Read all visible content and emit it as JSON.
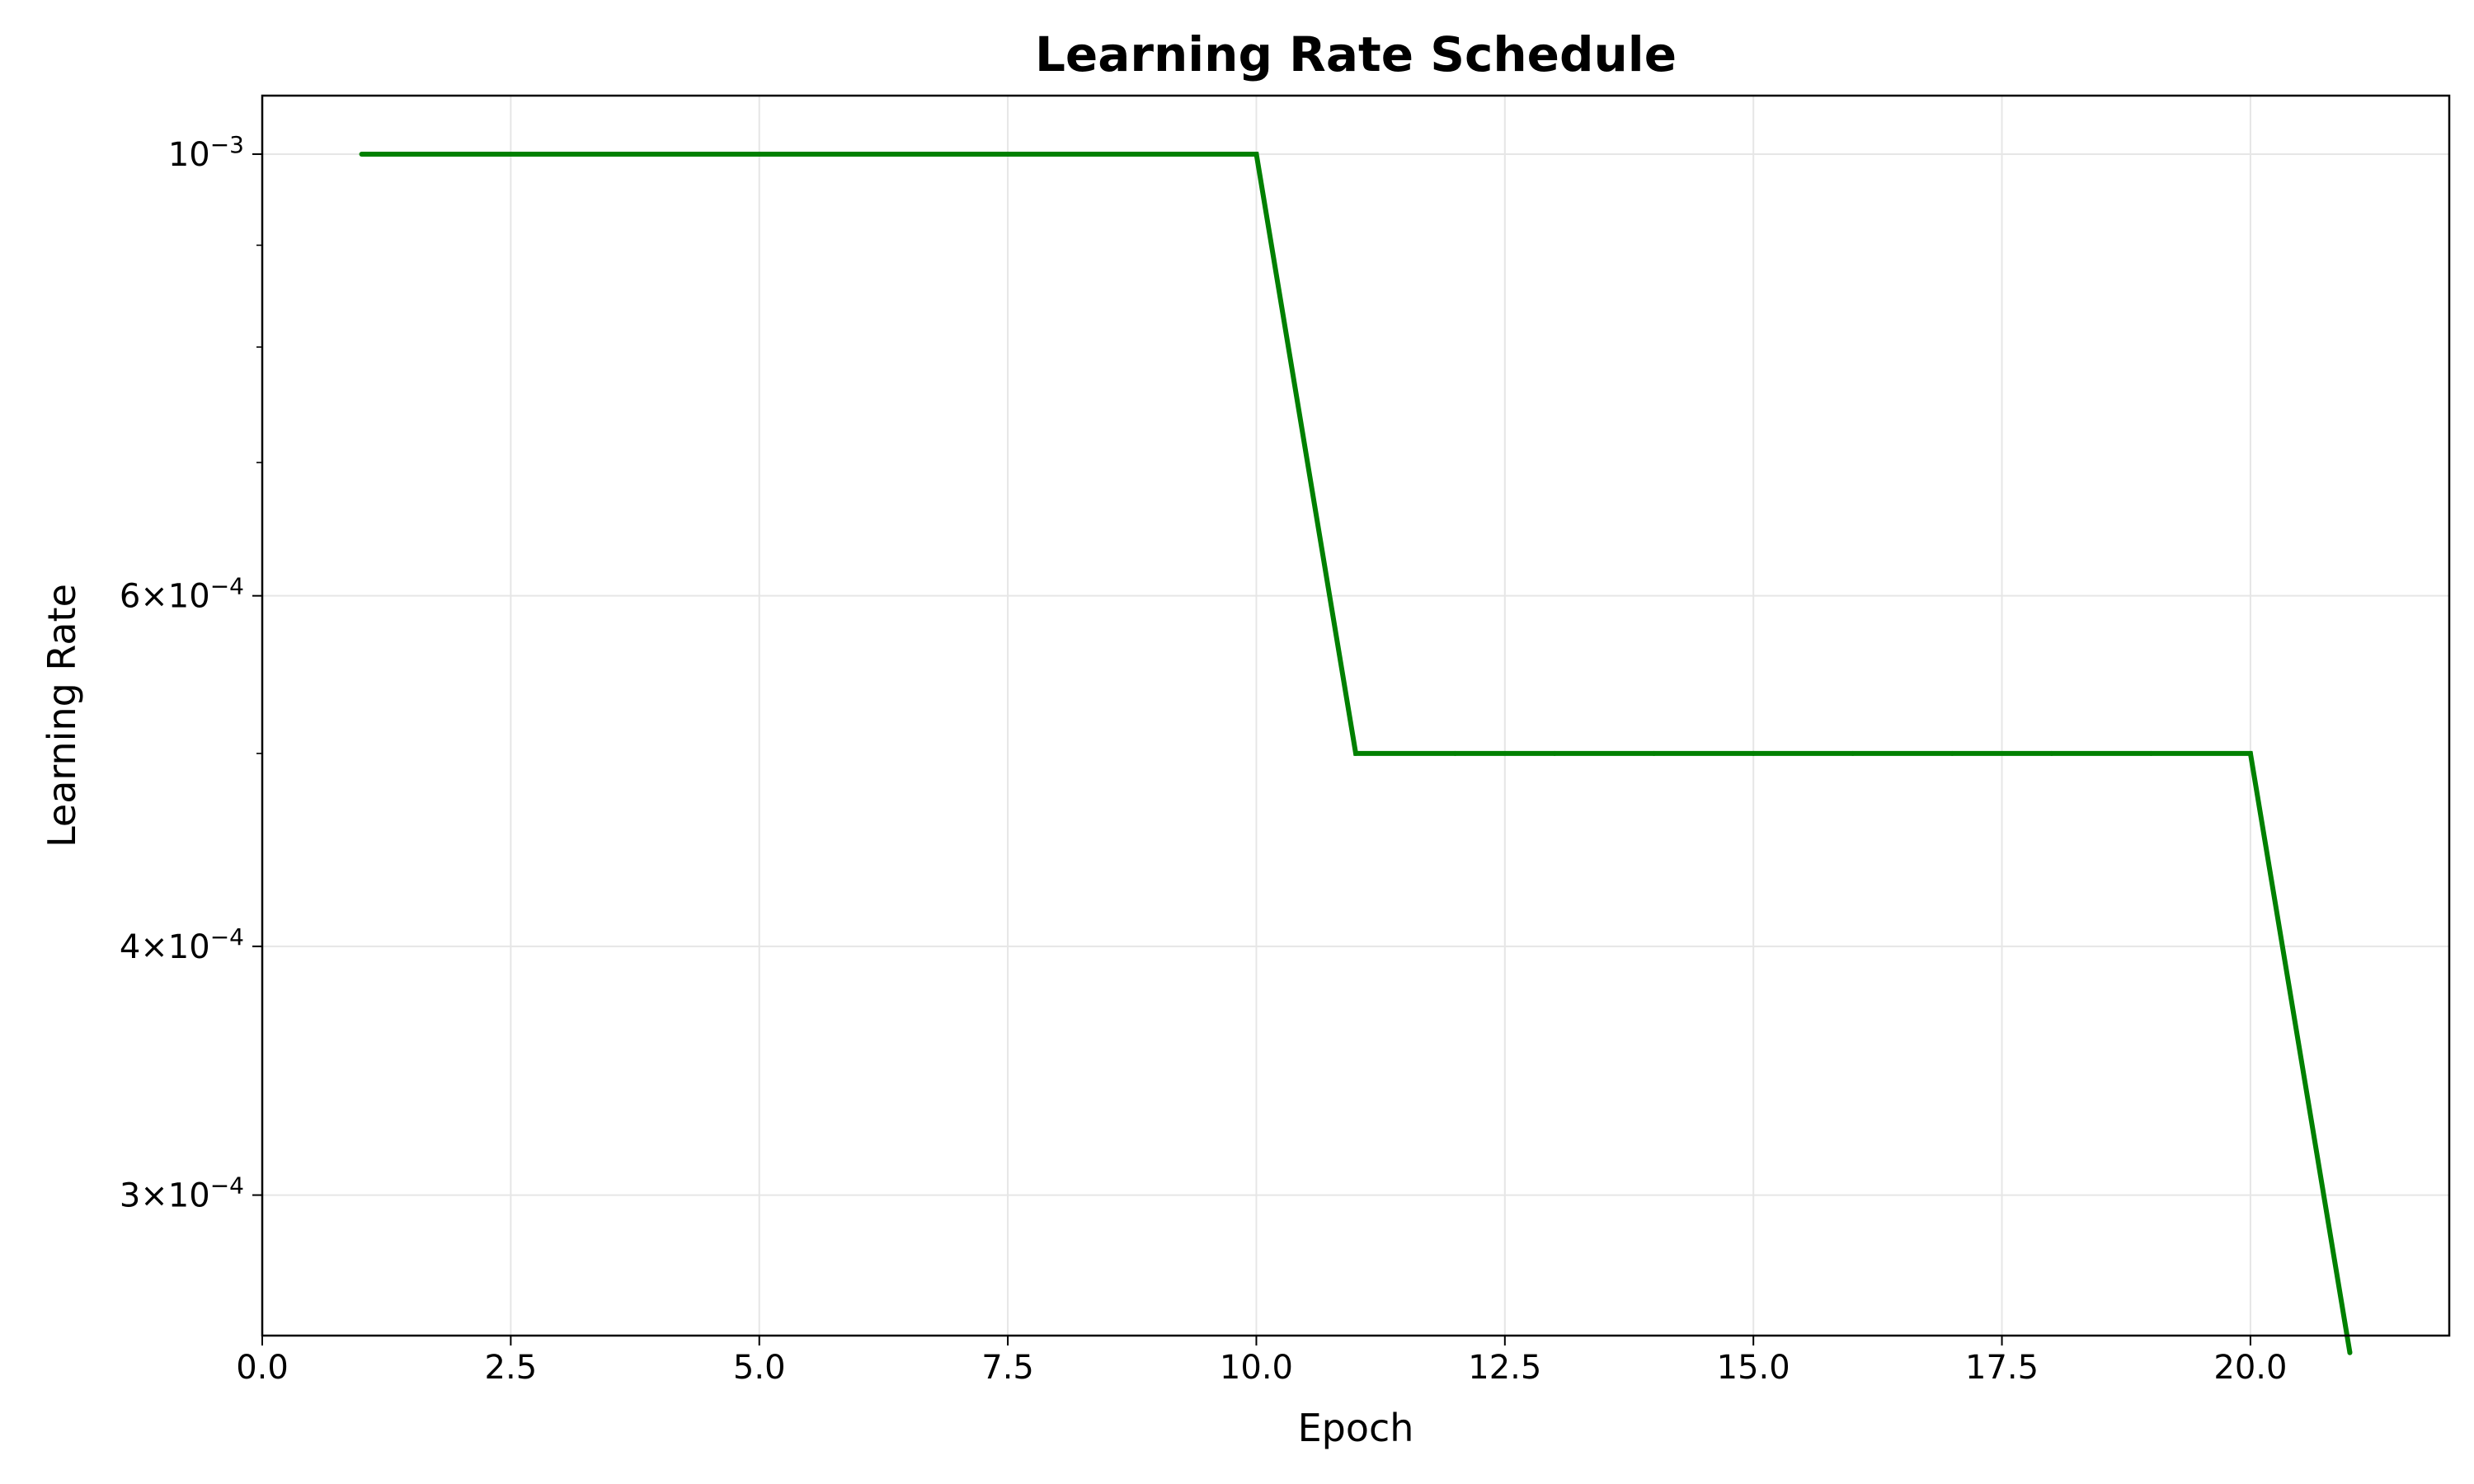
{
  "chart_data": {
    "type": "line",
    "title": "Learning Rate Schedule",
    "xlabel": "Epoch",
    "ylabel": "Learning Rate",
    "xlim": [
      0,
      22
    ],
    "ylim": [
      0.000255,
      0.00107
    ],
    "yscale": "log",
    "grid": true,
    "x_ticks": [
      0,
      2.5,
      5,
      7.5,
      10,
      12.5,
      15,
      17.5,
      20
    ],
    "x_tick_labels": [
      "0.0",
      "2.5",
      "5.0",
      "7.5",
      "10.0",
      "12.5",
      "15.0",
      "17.5",
      "20.0"
    ],
    "y_ticks": [
      {
        "value": 0.001,
        "base": "10",
        "exponent": "−3"
      },
      {
        "value": 0.0006,
        "base": "6×10",
        "exponent": "−4"
      },
      {
        "value": 0.0004,
        "base": "4×10",
        "exponent": "−4"
      },
      {
        "value": 0.0003,
        "base": "3×10",
        "exponent": "−4"
      }
    ],
    "y_minor_ticks": [
      0.0009,
      0.0008,
      0.0007,
      0.0005
    ],
    "series": [
      {
        "color": "#008000",
        "x": [
          1,
          2,
          3,
          4,
          5,
          6,
          7,
          8,
          9,
          10,
          11,
          12,
          13,
          14,
          15,
          16,
          17,
          18,
          19,
          20,
          21
        ],
        "y": [
          0.001,
          0.001,
          0.001,
          0.001,
          0.001,
          0.001,
          0.001,
          0.001,
          0.001,
          0.001,
          0.0005,
          0.0005,
          0.0005,
          0.0005,
          0.0005,
          0.0005,
          0.0005,
          0.0005,
          0.0005,
          0.0005,
          0.00025
        ]
      }
    ]
  }
}
